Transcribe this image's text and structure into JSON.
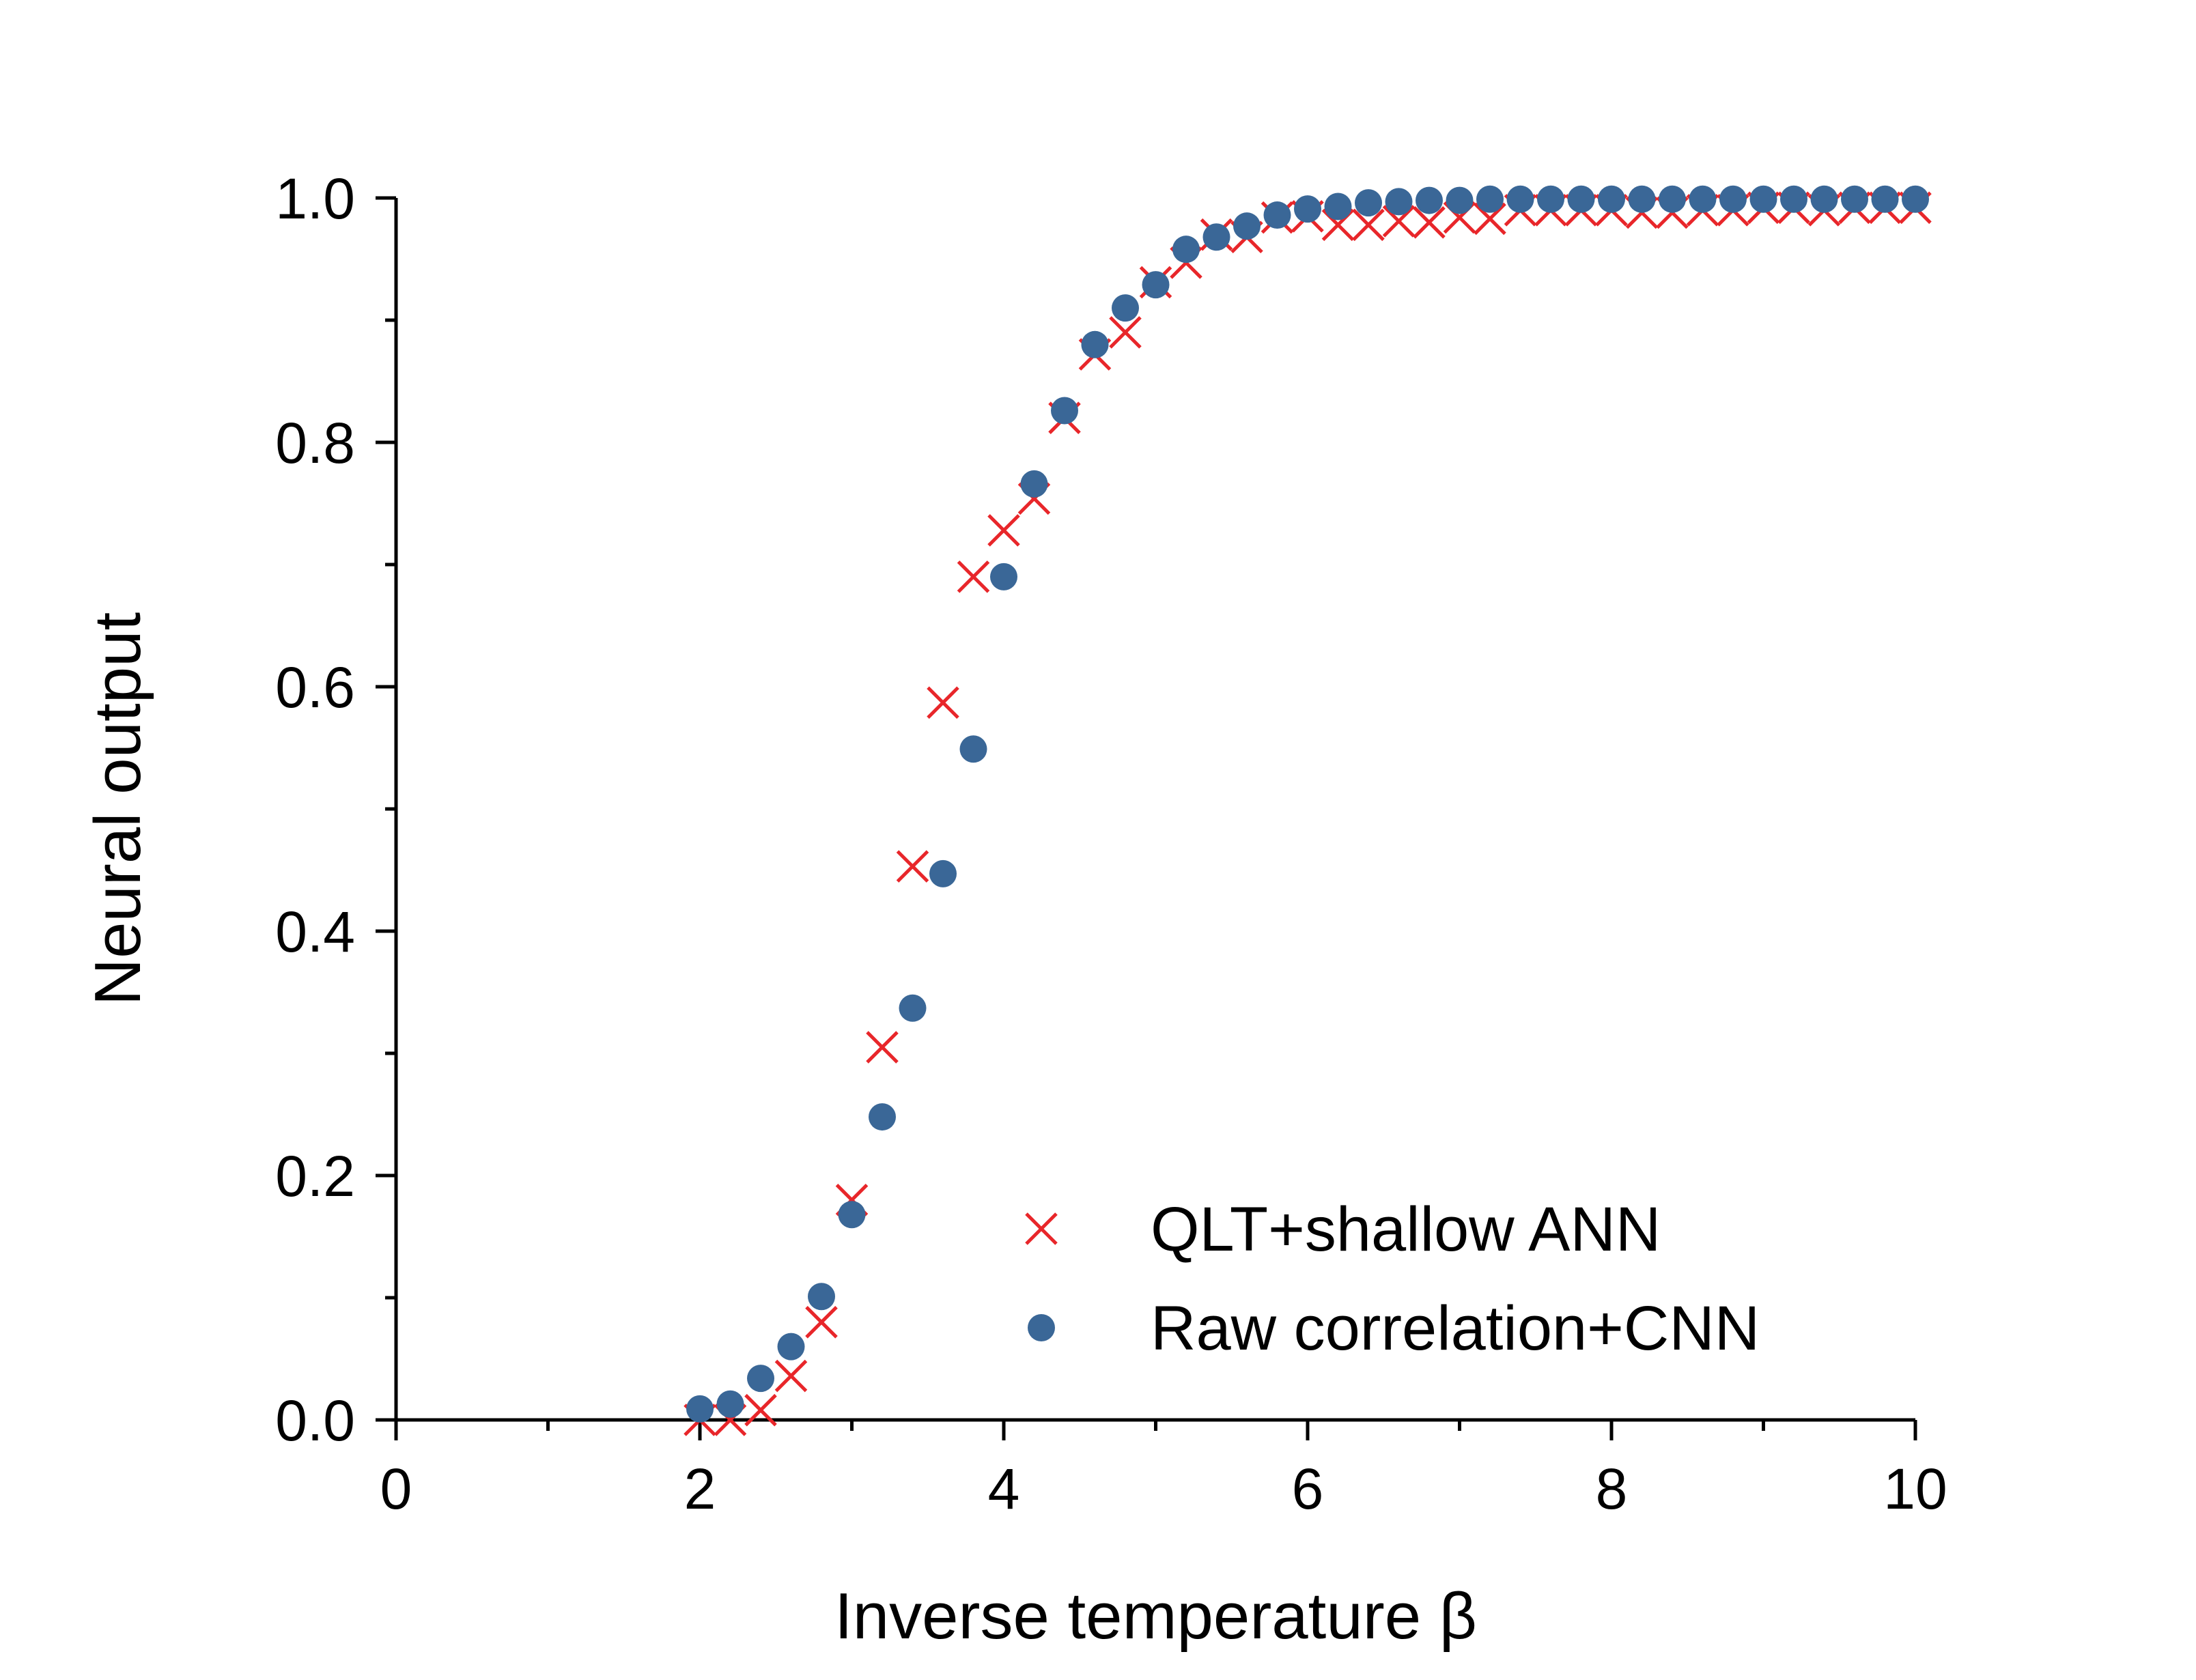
{
  "chart_data": {
    "type": "scatter",
    "xlabel": "Inverse temperature β",
    "ylabel": "Neural output",
    "xlim": [
      0,
      10
    ],
    "ylim": [
      0,
      1
    ],
    "x_ticks": [
      0,
      2,
      4,
      6,
      8,
      10
    ],
    "x_tick_labels": [
      "0",
      "2",
      "4",
      "6",
      "8",
      "10"
    ],
    "y_ticks": [
      0.0,
      0.2,
      0.4,
      0.6,
      0.8,
      1.0
    ],
    "y_tick_labels": [
      "0.0",
      "0.2",
      "0.4",
      "0.6",
      "0.8",
      "1.0"
    ],
    "grid": false,
    "legend_position": "bottom-right",
    "series": [
      {
        "name": "QLT+shallow ANN",
        "marker": "x",
        "color": "#e8262a",
        "x": [
          2.0,
          2.2,
          2.4,
          2.6,
          2.8,
          3.0,
          3.2,
          3.4,
          3.6,
          3.8,
          4.0,
          4.2,
          4.4,
          4.6,
          4.8,
          5.0,
          5.2,
          5.4,
          5.6,
          5.8,
          6.0,
          6.2,
          6.4,
          6.6,
          6.8,
          7.0,
          7.2,
          7.4,
          7.6,
          7.8,
          8.0,
          8.2,
          8.4,
          8.6,
          8.8,
          9.0,
          9.2,
          9.4,
          9.6,
          9.8,
          10.0
        ],
        "y": [
          0.0,
          0.0,
          0.008,
          0.036,
          0.08,
          0.18,
          0.305,
          0.453,
          0.587,
          0.69,
          0.728,
          0.754,
          0.82,
          0.872,
          0.89,
          0.931,
          0.947,
          0.97,
          0.968,
          0.984,
          0.985,
          0.978,
          0.978,
          0.981,
          0.98,
          0.984,
          0.983,
          0.99,
          0.99,
          0.99,
          0.99,
          0.988,
          0.988,
          0.99,
          0.99,
          0.992,
          0.992,
          0.99,
          0.992,
          0.992,
          0.992
        ]
      },
      {
        "name": "Raw correlation+CNN",
        "marker": "circle",
        "color": "#3a6797",
        "x": [
          2.0,
          2.2,
          2.4,
          2.6,
          2.8,
          3.0,
          3.2,
          3.4,
          3.6,
          3.8,
          4.0,
          4.2,
          4.4,
          4.6,
          4.8,
          5.0,
          5.2,
          5.4,
          5.6,
          5.8,
          6.0,
          6.2,
          6.4,
          6.6,
          6.8,
          7.0,
          7.2,
          7.4,
          7.6,
          7.8,
          8.0,
          8.2,
          8.4,
          8.6,
          8.8,
          9.0,
          9.2,
          9.4,
          9.6,
          9.8,
          10.0
        ],
        "y": [
          0.009,
          0.013,
          0.034,
          0.06,
          0.101,
          0.168,
          0.248,
          0.337,
          0.447,
          0.549,
          0.69,
          0.766,
          0.826,
          0.88,
          0.91,
          0.929,
          0.958,
          0.968,
          0.977,
          0.986,
          0.991,
          0.993,
          0.996,
          0.997,
          0.998,
          0.998,
          0.999,
          0.999,
          0.999,
          0.999,
          0.999,
          0.999,
          0.999,
          0.999,
          0.999,
          0.999,
          0.999,
          0.999,
          0.999,
          0.999,
          0.999
        ]
      }
    ]
  }
}
